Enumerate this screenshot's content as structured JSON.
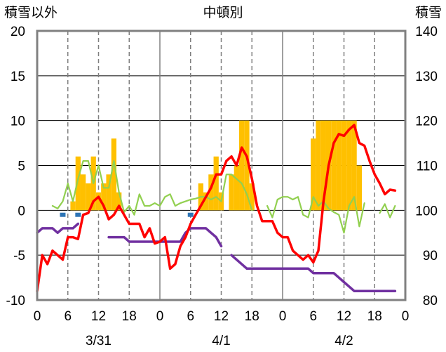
{
  "chart_data": {
    "type": "bar+line",
    "title": "中頓別",
    "left_axis": {
      "label": "積雪以外",
      "range": [
        -10,
        20
      ],
      "ticks": [
        "20",
        "15",
        "10",
        "5",
        "0",
        "-5",
        "-10"
      ]
    },
    "right_axis": {
      "label": "積雪",
      "range": [
        80,
        140
      ],
      "ticks": [
        "140",
        "130",
        "120",
        "110",
        "100",
        "90",
        "80"
      ]
    },
    "x_ticks": [
      "0",
      "6",
      "12",
      "18",
      "0",
      "6",
      "12",
      "18",
      "0",
      "6",
      "12",
      "18",
      "0"
    ],
    "date_labels": [
      "3/31",
      "4/1",
      "4/2"
    ],
    "grid": {
      "vertical_dashed_hours": [
        6,
        12,
        18,
        30,
        36,
        42,
        54,
        60,
        66
      ],
      "day_separators": [
        24,
        48
      ],
      "zero_line": true
    },
    "colors": {
      "precip_bars": "#ffc000",
      "temperature": "#ff0000",
      "wind": "#92d050",
      "snow_depth": "#7030a0",
      "markers": "#2e75b6"
    },
    "precip_bars": [
      {
        "h": 7,
        "v": 1
      },
      {
        "h": 8,
        "v": 6
      },
      {
        "h": 9,
        "v": 4
      },
      {
        "h": 10,
        "v": 3
      },
      {
        "h": 11,
        "v": 6
      },
      {
        "h": 12,
        "v": 2
      },
      {
        "h": 13,
        "v": 3
      },
      {
        "h": 14,
        "v": 4
      },
      {
        "h": 15,
        "v": 8
      },
      {
        "h": 16,
        "v": 2
      },
      {
        "h": 32,
        "v": 3
      },
      {
        "h": 33,
        "v": 2
      },
      {
        "h": 34,
        "v": 4
      },
      {
        "h": 35,
        "v": 6
      },
      {
        "h": 36,
        "v": 2
      },
      {
        "h": 38,
        "v": 4
      },
      {
        "h": 39,
        "v": 5
      },
      {
        "h": 40,
        "v": 10
      },
      {
        "h": 41,
        "v": 10
      },
      {
        "h": 42,
        "v": 3
      },
      {
        "h": 54,
        "v": 8
      },
      {
        "h": 55,
        "v": 10
      },
      {
        "h": 56,
        "v": 10
      },
      {
        "h": 57,
        "v": 10
      },
      {
        "h": 58,
        "v": 10
      },
      {
        "h": 59,
        "v": 10
      },
      {
        "h": 60,
        "v": 10
      },
      {
        "h": 61,
        "v": 10
      },
      {
        "h": 62,
        "v": 10
      },
      {
        "h": 63,
        "v": 5
      }
    ],
    "markers": [
      {
        "h": 5,
        "v": -0.5
      },
      {
        "h": 8,
        "v": -0.5
      },
      {
        "h": 30,
        "v": -0.5
      }
    ],
    "temperature": {
      "x": [
        0,
        1,
        2,
        3,
        4,
        5,
        6,
        7,
        8,
        9,
        10,
        11,
        12,
        13,
        14,
        15,
        16,
        17,
        18,
        19,
        20,
        21,
        22,
        23,
        24,
        25,
        26,
        27,
        28,
        29,
        30,
        31,
        32,
        33,
        34,
        35,
        36,
        37,
        38,
        39,
        40,
        41,
        42,
        43,
        44,
        45,
        46,
        47,
        48,
        49,
        50,
        51,
        52,
        53,
        54,
        55,
        56,
        57,
        58,
        59,
        60,
        61,
        62,
        63,
        64,
        65,
        66,
        67,
        68,
        69,
        70
      ],
      "y": [
        -9,
        -5,
        -6,
        -4.5,
        -5,
        -5.5,
        -3,
        -3,
        -3.2,
        -0.5,
        -0.3,
        1,
        1.5,
        0.5,
        -1,
        -0.5,
        0.5,
        -0.5,
        -1.5,
        -1.5,
        -1.5,
        -3,
        -2,
        -3.7,
        -3.5,
        -3,
        -6.5,
        -6,
        -4,
        -3,
        -1.5,
        -0.5,
        0.5,
        1.5,
        2.5,
        4,
        4,
        5.5,
        6,
        5,
        7,
        6,
        3.5,
        0.5,
        -1.2,
        -1.2,
        -1.2,
        -2.5,
        -3,
        -3,
        -4.5,
        -5,
        -5.5,
        -5,
        -5.8,
        -4.5,
        1,
        5,
        7.5,
        8.5,
        8.3,
        9,
        9.5,
        7.5,
        7.2,
        5.5,
        4,
        3,
        1.8,
        2.3,
        2.2
      ]
    },
    "wind": {
      "segments": [
        {
          "x": [
            3,
            4,
            5,
            6,
            7,
            8,
            9,
            10,
            11,
            12,
            13,
            14,
            15,
            16,
            17,
            18,
            19,
            20,
            21,
            22,
            23,
            24,
            25,
            26,
            27,
            28,
            29,
            30,
            31,
            32,
            33,
            34,
            35,
            36,
            37,
            38,
            39,
            40,
            41,
            42
          ],
          "y": [
            0.5,
            0.2,
            1,
            3,
            1,
            3.5,
            5.5,
            5.5,
            3,
            5,
            2.5,
            2.5,
            5.5,
            2,
            -0.2,
            0.5,
            -0.5,
            1.8,
            0.5,
            0.5,
            0.8,
            0.5,
            1.5,
            1.8,
            0.5,
            0.8,
            1,
            1.2,
            1.3,
            1.5,
            1.5,
            1.2,
            1.5,
            1,
            4,
            4,
            3.5,
            3,
            1.8,
            0
          ]
        },
        {
          "x": [
            45,
            46,
            47,
            48,
            49,
            50,
            51,
            52,
            53,
            54,
            55,
            56,
            57,
            58,
            59,
            60,
            61,
            62,
            63,
            64
          ],
          "y": [
            0.5,
            -0.8,
            1.2,
            1.5,
            1.5,
            1.2,
            1.5,
            -0.5,
            -0.8,
            1.5,
            0.5,
            1,
            0.2,
            -0.2,
            -0.5,
            -2.5,
            0.5,
            1.5,
            -1.8,
            0.8
          ]
        },
        {
          "x": [
            67,
            68,
            69,
            70
          ],
          "y": [
            -0.3,
            0.7,
            -0.8,
            0.5
          ]
        }
      ]
    },
    "snow_depth": {
      "segments": [
        {
          "x": [
            0,
            1,
            2,
            3,
            4,
            5,
            6,
            7,
            8
          ],
          "y": [
            95,
            96,
            96,
            96,
            95,
            96,
            96,
            96,
            97
          ]
        },
        {
          "x": [
            14,
            15,
            16,
            17,
            18,
            19,
            20,
            21,
            22,
            23,
            24,
            25,
            26,
            27,
            28,
            29,
            30,
            31,
            32,
            33,
            34,
            35,
            36
          ],
          "y": [
            94,
            94,
            94,
            94,
            93,
            93,
            93,
            93,
            93,
            93,
            93,
            93,
            93,
            93,
            93,
            95,
            96,
            96,
            96,
            96,
            95,
            94,
            92
          ]
        },
        {
          "x": [
            38,
            39,
            40,
            41,
            42,
            43,
            44,
            45,
            46,
            47,
            48,
            49,
            50,
            51,
            52,
            53,
            54,
            55,
            56,
            57,
            58,
            59,
            60,
            61,
            62,
            63,
            64,
            65,
            66,
            67,
            68,
            69,
            70
          ],
          "y": [
            90,
            89,
            88,
            87,
            87,
            87,
            87,
            87,
            87,
            87,
            87,
            87,
            87,
            87,
            87,
            87,
            86,
            86,
            86,
            86,
            86,
            85,
            84,
            83,
            82,
            82,
            82,
            82,
            82,
            82,
            82,
            82,
            82
          ]
        }
      ]
    }
  }
}
